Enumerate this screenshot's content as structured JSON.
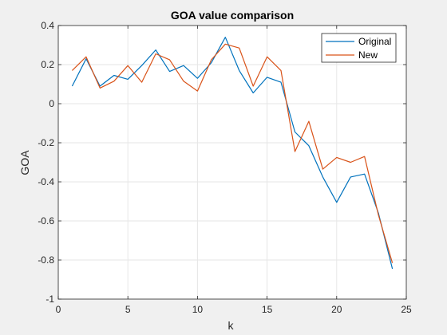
{
  "chart_data": {
    "type": "line",
    "title": "GOA value comparison",
    "xlabel": "k",
    "ylabel": "GOA",
    "xlim": [
      0,
      25
    ],
    "ylim": [
      -1,
      0.4
    ],
    "xticks": [
      "0",
      "5",
      "10",
      "15",
      "20",
      "25"
    ],
    "xtick_values": [
      0,
      5,
      10,
      15,
      20,
      25
    ],
    "yticks": [
      "0.4",
      "0.2",
      "0",
      "-0.2",
      "-0.4",
      "-0.6",
      "-0.8",
      "-1"
    ],
    "ytick_values": [
      0.4,
      0.2,
      0,
      -0.2,
      -0.4,
      -0.6,
      -0.8,
      -1
    ],
    "grid": true,
    "legend_position": "top-right",
    "x": [
      1,
      2,
      3,
      4,
      5,
      6,
      7,
      8,
      9,
      10,
      11,
      12,
      13,
      14,
      15,
      16,
      17,
      18,
      19,
      20,
      21,
      22,
      23,
      24
    ],
    "series": [
      {
        "name": "Original",
        "color": "#0072bd",
        "values": [
          0.09,
          0.23,
          0.09,
          0.145,
          0.125,
          0.195,
          0.275,
          0.165,
          0.195,
          0.13,
          0.21,
          0.34,
          0.17,
          0.055,
          0.135,
          0.11,
          -0.145,
          -0.215,
          -0.375,
          -0.505,
          -0.375,
          -0.36,
          -0.56,
          -0.845
        ]
      },
      {
        "name": "New",
        "color": "#d95319",
        "values": [
          0.17,
          0.24,
          0.08,
          0.115,
          0.195,
          0.11,
          0.255,
          0.225,
          0.115,
          0.065,
          0.225,
          0.305,
          0.285,
          0.09,
          0.24,
          0.17,
          -0.245,
          -0.09,
          -0.335,
          -0.275,
          -0.3,
          -0.27,
          -0.57,
          -0.815
        ]
      }
    ]
  }
}
